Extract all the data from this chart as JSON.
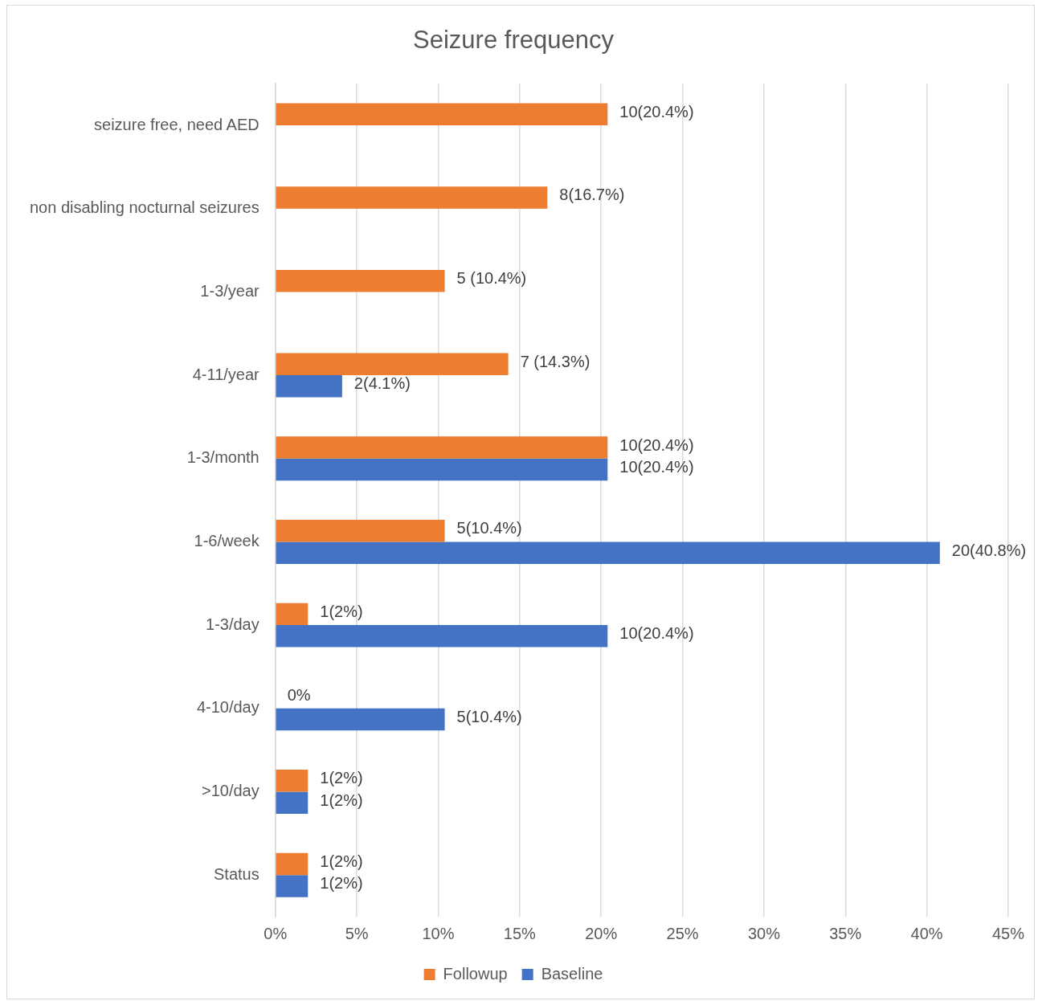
{
  "chart_data": {
    "type": "bar",
    "orientation": "horizontal",
    "title": "Seizure frequency",
    "categories": [
      "seizure free, need AED",
      "non disabling nocturnal seizures",
      "1-3/year",
      "4-11/year",
      "1-3/month",
      "1-6/week",
      "1-3/day",
      "4-10/day",
      ">10/day",
      "Status"
    ],
    "series": [
      {
        "name": "Followup",
        "color": "#ed7d31",
        "values": [
          20.4,
          16.7,
          10.4,
          14.3,
          20.4,
          10.4,
          2,
          0,
          2,
          2
        ],
        "value_labels": [
          "10(20.4%)",
          "8(16.7%)",
          "5 (10.4%)",
          "7 (14.3%)",
          "10(20.4%)",
          "5(10.4%)",
          "1(2%)",
          "0%",
          "1(2%)",
          "1(2%)"
        ]
      },
      {
        "name": "Baseline",
        "color": "#4472c4",
        "values": [
          null,
          null,
          null,
          4.1,
          20.4,
          40.8,
          20.4,
          10.4,
          2,
          2
        ],
        "value_labels": [
          null,
          null,
          null,
          "2(4.1%)",
          "10(20.4%)",
          "20(40.8%)",
          "10(20.4%)",
          "5(10.4%)",
          "1(2%)",
          "1(2%)"
        ]
      }
    ],
    "xlim": [
      0,
      45
    ],
    "xticks": [
      {
        "value": 0,
        "label": "0%"
      },
      {
        "value": 5,
        "label": "5%"
      },
      {
        "value": 10,
        "label": "10%"
      },
      {
        "value": 15,
        "label": "15%"
      },
      {
        "value": 20,
        "label": "20%"
      },
      {
        "value": 25,
        "label": "25%"
      },
      {
        "value": 30,
        "label": "30%"
      },
      {
        "value": 35,
        "label": "35%"
      },
      {
        "value": 40,
        "label": "40%"
      },
      {
        "value": 45,
        "label": "45%"
      }
    ],
    "grid": "x",
    "legend": "bottom"
  }
}
